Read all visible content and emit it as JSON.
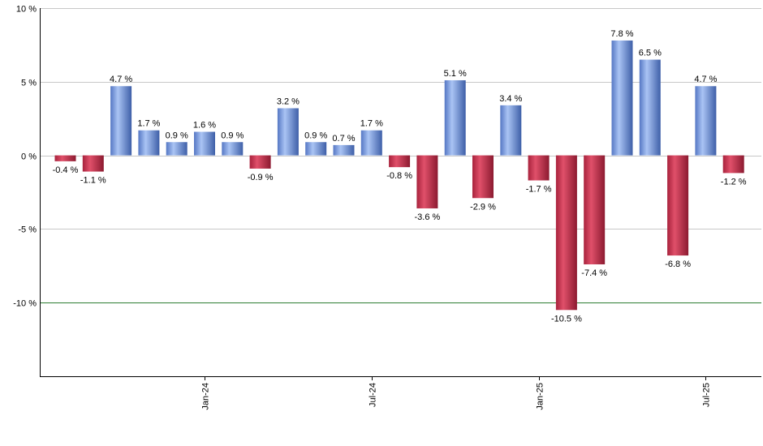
{
  "chart_data": {
    "type": "bar",
    "title": "",
    "xlabel": "",
    "ylabel": "",
    "ylim": [
      -15,
      10
    ],
    "y_ticks": [
      10,
      5,
      0,
      -5,
      -10
    ],
    "y_tick_labels": [
      "10 %",
      "5 %",
      "0 %",
      "-5 %",
      "-10 %"
    ],
    "unit_suffix": " %",
    "grid": "horizontal",
    "reference_line": {
      "value": -10,
      "color": "#2e7d32"
    },
    "x_tick_labels": [
      {
        "label": "Jan-24",
        "index": 5
      },
      {
        "label": "Jul-24",
        "index": 11
      },
      {
        "label": "Jan-25",
        "index": 17
      },
      {
        "label": "Jul-25",
        "index": 23
      }
    ],
    "values": [
      -0.4,
      -1.1,
      4.7,
      1.7,
      0.9,
      1.6,
      0.9,
      -0.9,
      3.2,
      0.9,
      0.7,
      1.7,
      -0.8,
      -3.6,
      5.1,
      -2.9,
      3.4,
      -1.7,
      -10.5,
      -7.4,
      7.8,
      6.5,
      -6.8,
      4.7,
      -1.2
    ],
    "data_labels": [
      "-0.4 %",
      "-1.1 %",
      "4.7 %",
      "1.7 %",
      "0.9 %",
      "1.6 %",
      "0.9 %",
      "-0.9 %",
      "3.2 %",
      "0.9 %",
      "0.7 %",
      "1.7 %",
      "-0.8 %",
      "-3.6 %",
      "5.1 %",
      "-2.9 %",
      "3.4 %",
      "-1.7 %",
      "-10.5 %",
      "-7.4 %",
      "7.8 %",
      "6.5 %",
      "-6.8 %",
      "4.7 %",
      "-1.2 %"
    ],
    "colors": {
      "positive": "#6f95de",
      "negative": "#c2304b",
      "grid": "#c8c8c8",
      "axis": "#000000"
    }
  }
}
